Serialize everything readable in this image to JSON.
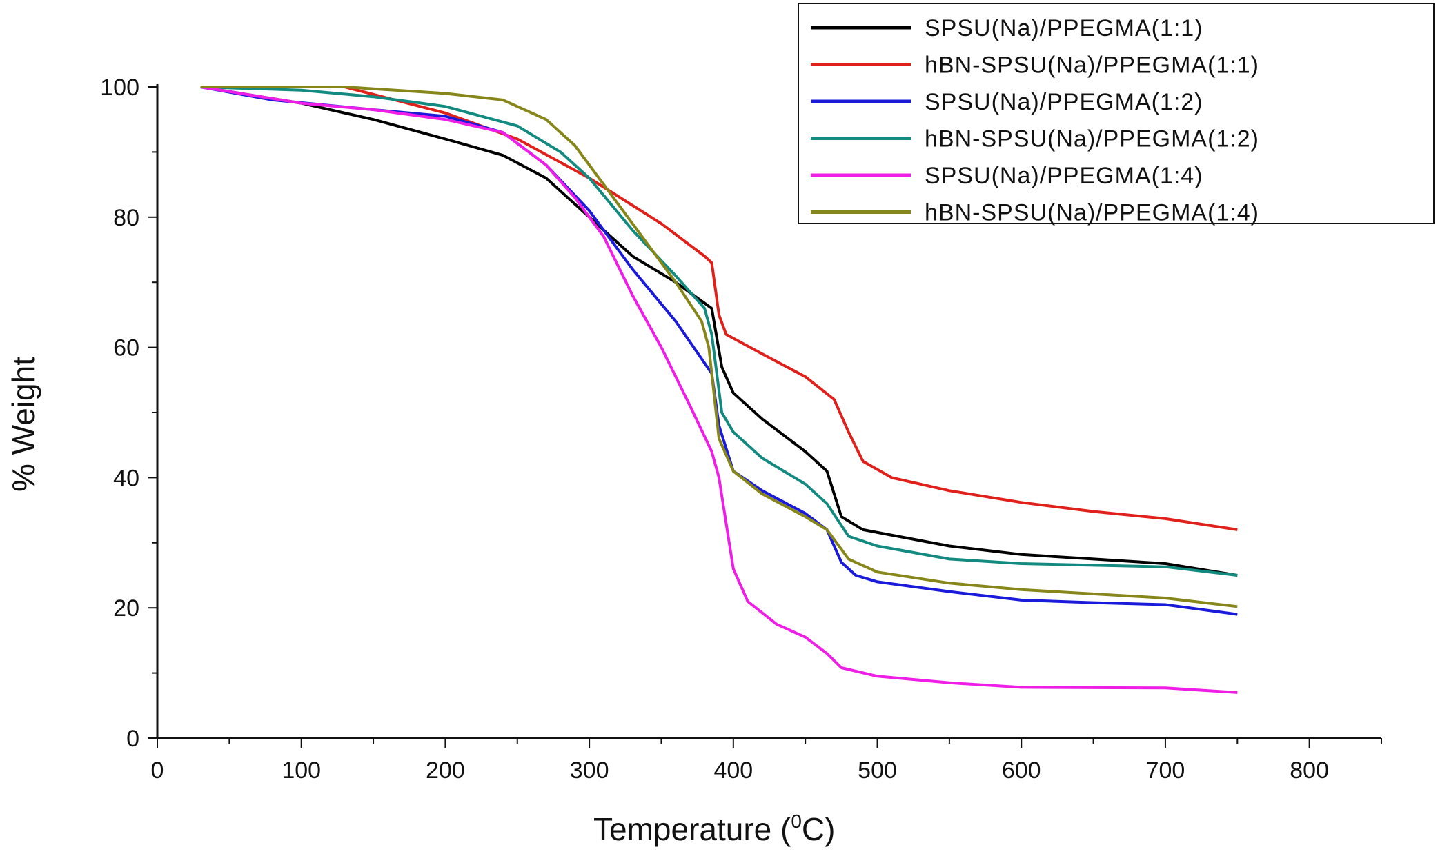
{
  "chart_data": {
    "type": "line",
    "title": "",
    "xlabel": "Temperature (",
    "xlabel_sup": "0",
    "xlabel_unit": "C)",
    "ylabel": "% Weight",
    "xlim": [
      0,
      850
    ],
    "ylim": [
      0,
      100
    ],
    "xticks": [
      0,
      100,
      200,
      300,
      400,
      500,
      600,
      700,
      800
    ],
    "xtick_labels": [
      "0",
      "100",
      "200",
      "300",
      "400",
      "500",
      "600",
      "700",
      "800"
    ],
    "yticks": [
      0,
      20,
      40,
      60,
      80,
      100
    ],
    "ytick_labels": [
      "0",
      "20",
      "40",
      "60",
      "80",
      "100"
    ],
    "grid": false,
    "legend_position": "top-right",
    "series": [
      {
        "name": "SPSU(Na)/PPEGMA(1:1)",
        "color": "#000000",
        "x": [
          30,
          100,
          150,
          200,
          240,
          270,
          300,
          330,
          360,
          385,
          392,
          400,
          420,
          450,
          465,
          475,
          490,
          550,
          600,
          650,
          700,
          750
        ],
        "y": [
          100,
          97.5,
          95,
          92,
          89.5,
          86,
          80,
          74,
          70,
          66,
          57,
          53,
          49,
          44,
          41,
          34,
          32,
          29.5,
          28.2,
          27.5,
          26.8,
          25
        ]
      },
      {
        "name": "hBN-SPSU(Na)/PPEGMA(1:1)",
        "color": "#e0201b",
        "x": [
          30,
          130,
          200,
          250,
          300,
          350,
          380,
          385,
          390,
          395,
          420,
          450,
          470,
          480,
          490,
          510,
          550,
          600,
          650,
          700,
          750
        ],
        "y": [
          100,
          100,
          96,
          92,
          86,
          79,
          74,
          73,
          65,
          62,
          59,
          55.5,
          52,
          47,
          42.5,
          40,
          38,
          36.2,
          34.8,
          33.7,
          32
        ]
      },
      {
        "name": "SPSU(Na)/PPEGMA(1:2)",
        "color": "#1a1adb",
        "x": [
          30,
          80,
          150,
          200,
          240,
          270,
          300,
          330,
          360,
          385,
          390,
          400,
          420,
          450,
          465,
          475,
          485,
          500,
          550,
          600,
          650,
          700,
          750
        ],
        "y": [
          100,
          98,
          96.5,
          95.5,
          93,
          88,
          81,
          72,
          64,
          56,
          48,
          41,
          38,
          34.5,
          32,
          27,
          25,
          24,
          22.5,
          21.2,
          20.8,
          20.5,
          19
        ]
      },
      {
        "name": "hBN-SPSU(Na)/PPEGMA(1:2)",
        "color": "#138a80",
        "x": [
          30,
          100,
          150,
          200,
          250,
          280,
          300,
          330,
          360,
          380,
          385,
          392,
          400,
          420,
          450,
          465,
          480,
          500,
          550,
          600,
          700,
          750
        ],
        "y": [
          100,
          99.5,
          98.5,
          97,
          94,
          90,
          86,
          78,
          71,
          66,
          62,
          50,
          47,
          43,
          39,
          36,
          31,
          29.5,
          27.5,
          26.8,
          26.3,
          25
        ]
      },
      {
        "name": "SPSU(Na)/PPEGMA(1:4)",
        "color": "#ee1ee6",
        "x": [
          30,
          100,
          150,
          200,
          240,
          270,
          290,
          310,
          330,
          350,
          370,
          385,
          390,
          395,
          400,
          410,
          430,
          450,
          465,
          475,
          500,
          550,
          600,
          700,
          750
        ],
        "y": [
          100,
          97.5,
          96.5,
          95,
          93,
          88,
          83,
          77,
          68,
          60,
          51,
          44,
          40,
          33,
          26,
          21,
          17.5,
          15.5,
          13,
          10.8,
          9.5,
          8.5,
          7.8,
          7.7,
          7
        ]
      },
      {
        "name": "hBN-SPSU(Na)/PPEGMA(1:4)",
        "color": "#86861a",
        "x": [
          30,
          130,
          200,
          240,
          270,
          290,
          310,
          340,
          360,
          378,
          383,
          390,
          400,
          420,
          450,
          465,
          480,
          500,
          550,
          600,
          700,
          750
        ],
        "y": [
          100,
          100,
          99,
          98,
          95,
          91,
          85,
          76,
          70,
          64,
          60,
          46,
          41,
          37.5,
          34,
          32,
          27.5,
          25.5,
          23.8,
          22.8,
          21.5,
          20.2
        ]
      }
    ]
  }
}
